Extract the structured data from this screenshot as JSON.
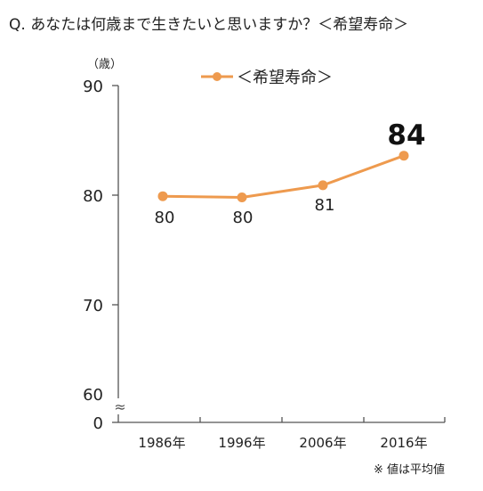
{
  "question": "Q. あなたは何歳まで生きたいと思いますか？＜希望寿命＞",
  "colors": {
    "series": "#ee9a4e",
    "axis": "#555555",
    "text": "#222222"
  },
  "chart_data": {
    "type": "line",
    "ylabel": "（歳）",
    "x": [
      "1986年",
      "1996年",
      "2006年",
      "2016年"
    ],
    "series": [
      {
        "name": "＜希望寿命＞",
        "values": [
          79.9,
          79.8,
          80.9,
          83.6
        ]
      }
    ],
    "data_labels": [
      "80",
      "80",
      "81",
      "84"
    ],
    "yticks": [
      "90",
      "80",
      "70",
      "60",
      "0"
    ],
    "ylim": [
      60,
      90
    ],
    "axis_break": "≈",
    "legend": "top-center",
    "grid": false,
    "note": "※ 値は平均値"
  }
}
